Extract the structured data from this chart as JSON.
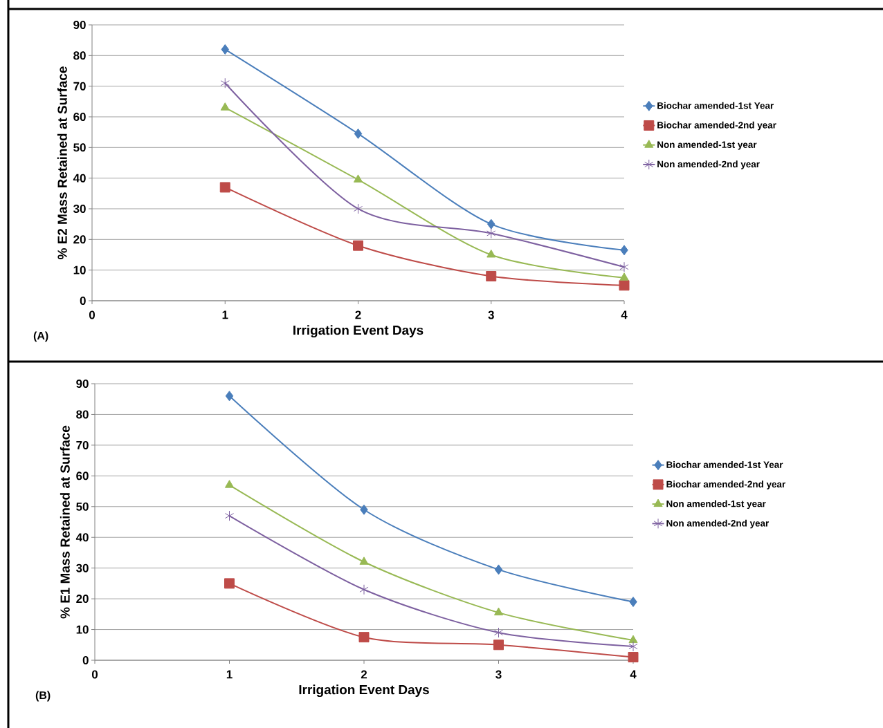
{
  "chart_data": [
    {
      "type": "line",
      "xlabel": "Irrigation Event Days",
      "ylabel": "% E2 Mass Retained at Surface",
      "annotations": [
        "(A)"
      ],
      "x": [
        1,
        2,
        3,
        4
      ],
      "xlim": [
        0,
        4
      ],
      "xticks": [
        0,
        1,
        2,
        3,
        4
      ],
      "ylim": [
        0,
        90
      ],
      "yticks": [
        0,
        10,
        20,
        30,
        40,
        50,
        60,
        70,
        80,
        90
      ],
      "grid": "y",
      "legend": "right",
      "series": [
        {
          "name": "Biochar amended-1st  Year",
          "color": "#4a7ebb",
          "marker": "diamond",
          "values": [
            82,
            54.5,
            25,
            16.5
          ]
        },
        {
          "name": "Biochar amended-2nd  year",
          "color": "#be4b48",
          "marker": "square",
          "values": [
            37,
            18,
            8,
            5
          ]
        },
        {
          "name": "Non amended-1st  year",
          "color": "#98b954",
          "marker": "triangle",
          "values": [
            63,
            39.5,
            15,
            7.5
          ]
        },
        {
          "name": "Non amended-2nd  year",
          "color": "#7d60a0",
          "marker": "cross",
          "values": [
            71,
            30,
            22,
            11
          ]
        }
      ]
    },
    {
      "type": "line",
      "xlabel": "Irrigation Event Days",
      "ylabel": "% E1 Mass Retained at Surface",
      "annotations": [
        "(B)"
      ],
      "x": [
        1,
        2,
        3,
        4
      ],
      "xlim": [
        0,
        4
      ],
      "xticks": [
        0,
        1,
        2,
        3,
        4
      ],
      "ylim": [
        0,
        90
      ],
      "yticks": [
        0,
        10,
        20,
        30,
        40,
        50,
        60,
        70,
        80,
        90
      ],
      "grid": "y",
      "legend": "right",
      "series": [
        {
          "name": "Biochar amended-1st  Year",
          "color": "#4a7ebb",
          "marker": "diamond",
          "values": [
            86,
            49,
            29.5,
            19
          ]
        },
        {
          "name": "Biochar amended-2nd  year",
          "color": "#be4b48",
          "marker": "square",
          "values": [
            25,
            7.5,
            5,
            1
          ]
        },
        {
          "name": "Non amended-1st  year",
          "color": "#98b954",
          "marker": "triangle",
          "values": [
            57,
            32,
            15.5,
            6.5
          ]
        },
        {
          "name": "Non amended-2nd  year",
          "color": "#7d60a0",
          "marker": "cross",
          "values": [
            47,
            23,
            9,
            4.5
          ]
        }
      ]
    }
  ]
}
